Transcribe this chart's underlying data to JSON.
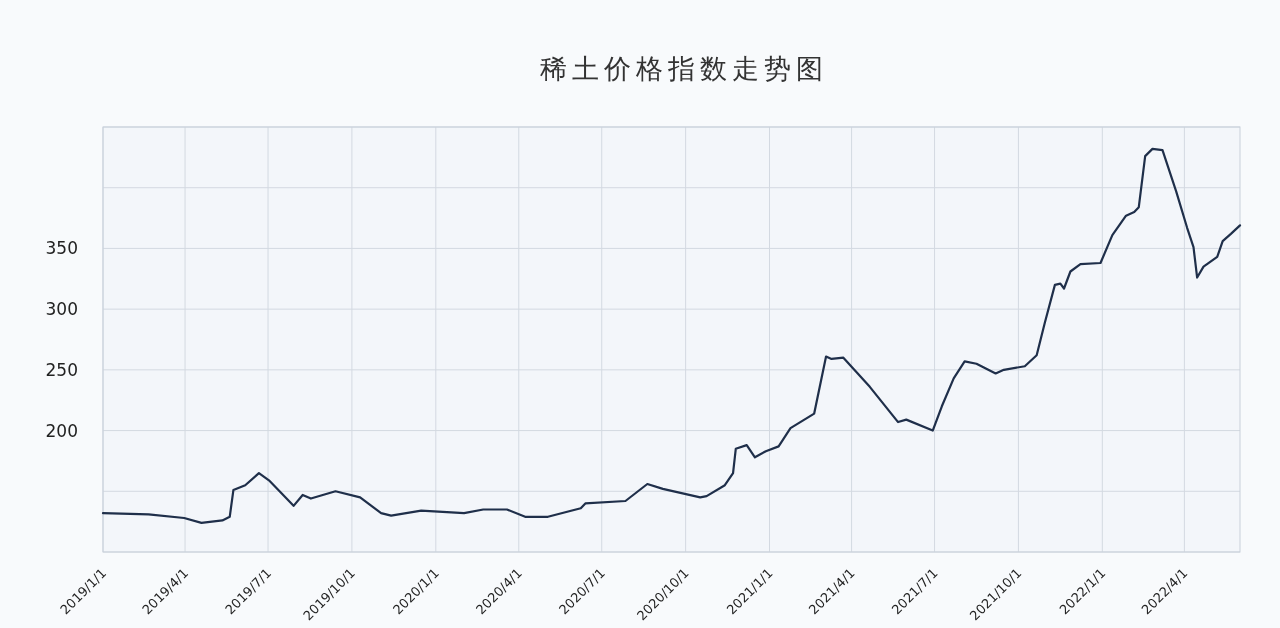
{
  "chart_data": {
    "type": "line",
    "title": "稀土价格指数走势图",
    "x": [
      "2019-01-01",
      "2019-02-20",
      "2019-03-31",
      "2019-04-19",
      "2019-05-12",
      "2019-05-20",
      "2019-05-24",
      "2019-06-06",
      "2019-06-21",
      "2019-07-02",
      "2019-07-29",
      "2019-08-08",
      "2019-08-17",
      "2019-09-13",
      "2019-10-10",
      "2019-11-02",
      "2019-11-13",
      "2019-12-16",
      "2020-02-01",
      "2020-02-22",
      "2020-03-19",
      "2020-04-08",
      "2020-05-03",
      "2020-06-08",
      "2020-06-13",
      "2020-07-27",
      "2020-08-20",
      "2020-09-06",
      "2020-10-17",
      "2020-10-24",
      "2020-11-13",
      "2020-11-22",
      "2020-11-25",
      "2020-12-07",
      "2020-12-16",
      "2020-12-28",
      "2021-01-11",
      "2021-01-24",
      "2021-02-19",
      "2021-03-04",
      "2021-03-10",
      "2021-03-23",
      "2021-04-21",
      "2021-05-22",
      "2021-05-31",
      "2021-06-29",
      "2021-07-09",
      "2021-07-22",
      "2021-08-03",
      "2021-08-16",
      "2021-09-06",
      "2021-09-15",
      "2021-10-08",
      "2021-10-21",
      "2021-10-30",
      "2021-11-10",
      "2021-11-16",
      "2021-11-20",
      "2021-11-27",
      "2021-12-08",
      "2021-12-30",
      "2022-01-12",
      "2022-01-27",
      "2022-02-05",
      "2022-02-10",
      "2022-02-17",
      "2022-02-25",
      "2022-03-08",
      "2022-03-23",
      "2022-04-04",
      "2022-04-11",
      "2022-04-15",
      "2022-04-22",
      "2022-05-07",
      "2022-05-13",
      "2022-05-22",
      "2022-06-01"
    ],
    "series": [
      {
        "color": "#1f2f4a",
        "values": [
          132,
          131,
          128,
          124,
          126,
          129,
          151,
          155,
          165,
          159,
          138,
          147,
          144,
          150,
          145,
          132,
          130,
          134,
          132,
          135,
          135,
          129,
          129,
          136,
          140,
          142,
          156,
          152,
          145,
          146,
          155,
          165,
          185,
          188,
          178,
          183,
          187,
          202,
          214,
          261,
          259,
          260,
          236,
          207,
          209,
          200,
          220,
          243,
          257,
          255,
          247,
          250,
          253,
          262,
          289,
          320,
          321,
          317,
          331,
          337,
          338,
          361,
          377,
          380,
          384,
          426,
          432,
          431,
          397,
          367,
          351,
          326,
          335,
          343,
          356,
          362,
          369
        ]
      }
    ],
    "xlim": [
      "2019-01-01",
      "2022-06-01"
    ],
    "xticks": [
      {
        "value": "2019-01-01",
        "label": "2019/1/1"
      },
      {
        "value": "2019-04-01",
        "label": "2019/4/1"
      },
      {
        "value": "2019-07-01",
        "label": "2019/7/1"
      },
      {
        "value": "2019-10-01",
        "label": "2019/10/1"
      },
      {
        "value": "2020-01-01",
        "label": "2020/1/1"
      },
      {
        "value": "2020-04-01",
        "label": "2020/4/1"
      },
      {
        "value": "2020-07-01",
        "label": "2020/7/1"
      },
      {
        "value": "2020-10-01",
        "label": "2020/10/1"
      },
      {
        "value": "2021-01-01",
        "label": "2021/1/1"
      },
      {
        "value": "2021-04-01",
        "label": "2021/4/1"
      },
      {
        "value": "2021-07-01",
        "label": "2021/7/1"
      },
      {
        "value": "2021-10-01",
        "label": "2021/10/1"
      },
      {
        "value": "2022-01-01",
        "label": "2022/1/1"
      },
      {
        "value": "2022-04-01",
        "label": "2022/4/1"
      }
    ],
    "ylim": [
      100,
      450
    ],
    "yticks": [
      {
        "value": 100,
        "label": null
      },
      {
        "value": 150,
        "label": null
      },
      200,
      250,
      300,
      350,
      {
        "value": 400,
        "label": null
      },
      {
        "value": 450,
        "label": null
      }
    ],
    "grid": true
  }
}
